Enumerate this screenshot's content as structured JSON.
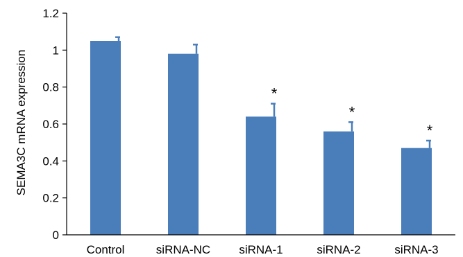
{
  "chart_data": {
    "type": "bar",
    "title": "",
    "xlabel": "",
    "ylabel": "SEMA3C mRNA expression",
    "ylim": [
      0,
      1.2
    ],
    "yticks": [
      "0",
      "0.2",
      "0.4",
      "0.6",
      "0.8",
      "1",
      "1.2"
    ],
    "categories": [
      "Control",
      "siRNA-NC",
      "siRNA-1",
      "siRNA-2",
      "siRNA-3"
    ],
    "values": [
      1.05,
      0.98,
      0.64,
      0.56,
      0.47
    ],
    "errors": [
      0.02,
      0.05,
      0.07,
      0.05,
      0.04
    ],
    "annotations": [
      "",
      "",
      "*",
      "*",
      "*"
    ],
    "bar_color": "#4a7ebb",
    "grid": false,
    "legend": "none"
  }
}
